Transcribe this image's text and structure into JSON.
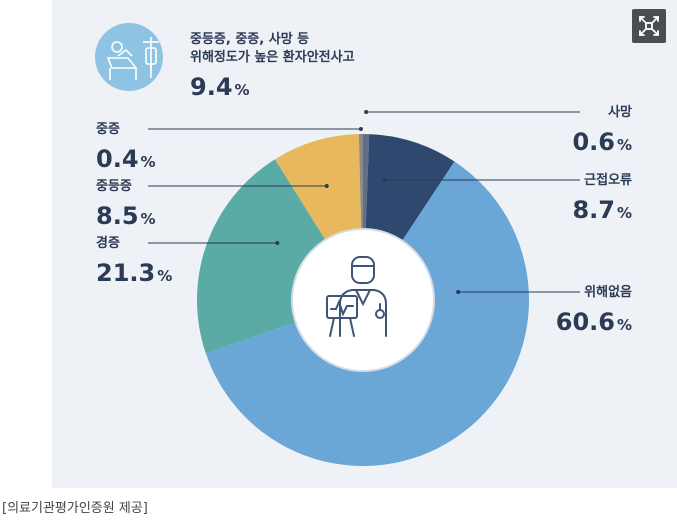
{
  "chart_data": {
    "type": "pie",
    "categories": [
      "사망",
      "근접오류",
      "위해없음",
      "경증",
      "중등증",
      "중증"
    ],
    "values": [
      0.6,
      8.7,
      60.6,
      21.3,
      8.5,
      0.4
    ],
    "value_labels": [
      "0.6",
      "8.7",
      "60.6",
      "21.3",
      "8.5",
      "0.4"
    ],
    "unit": "%",
    "colors": [
      "#5f6f86",
      "#2f4870",
      "#6aa6d6",
      "#5aaaa6",
      "#e8b95c",
      "#8b8b8b"
    ],
    "donut": true
  },
  "callout": {
    "line1": "중등증, 중증, 사망 등",
    "line2": "위해정도가 높은 환자안전사고",
    "value": "9.4",
    "unit": "%",
    "icon": "hospital-bed-iv-icon"
  },
  "center_icon": "doctor-with-monitor-icon",
  "expand_icon": "expand-icon",
  "caption": "[의료기관평가인증원 제공]"
}
